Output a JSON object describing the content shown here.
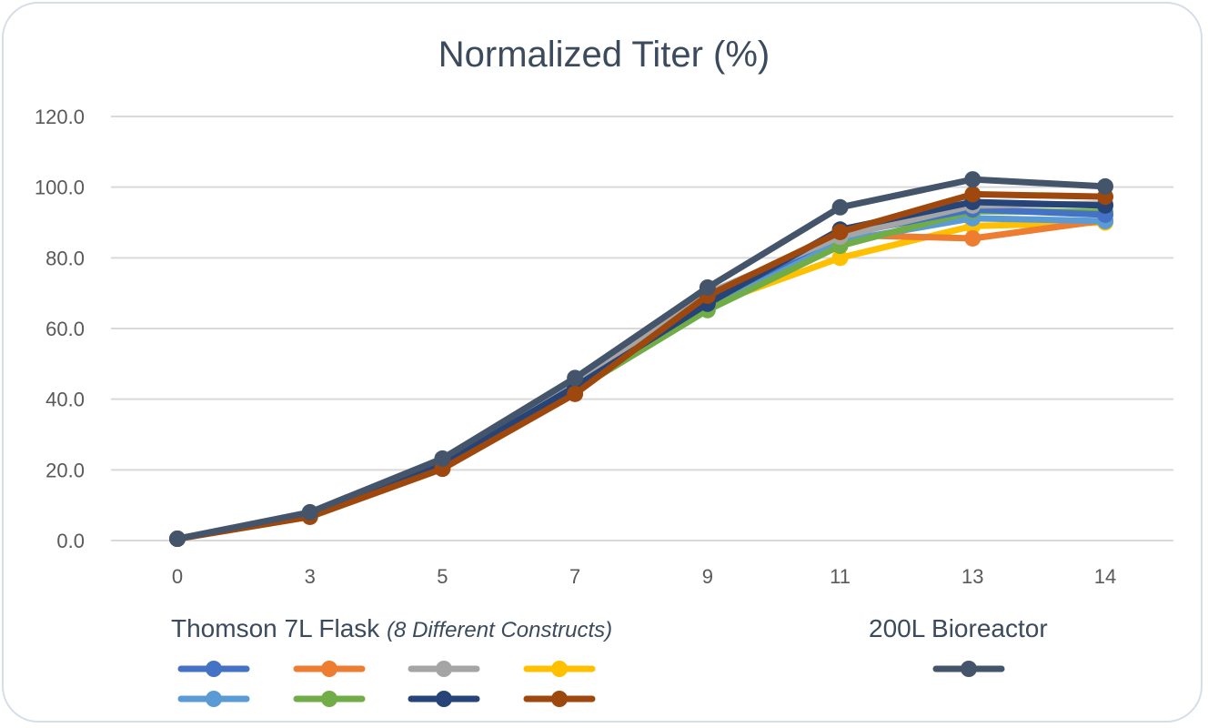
{
  "chart_data": {
    "type": "line",
    "title": "Normalized Titer (%)",
    "xlabel": "",
    "ylabel": "",
    "categories": [
      "0",
      "3",
      "5",
      "7",
      "9",
      "11",
      "13",
      "14"
    ],
    "ylim": [
      0,
      120
    ],
    "yticks": [
      "0.0",
      "20.0",
      "40.0",
      "60.0",
      "80.0",
      "100.0",
      "120.0"
    ],
    "grid": true,
    "legend": {
      "group1_title": "Thomson 7L Flask",
      "group1_note": "(8 Different Constructs)",
      "group2_title": "200L Bioreactor",
      "placement": "bottom"
    },
    "series": [
      {
        "group": "flask",
        "color": "#4472c4",
        "values": [
          0.5,
          7.2,
          21.5,
          43.5,
          67.5,
          86.5,
          93.7,
          92.2
        ]
      },
      {
        "group": "flask",
        "color": "#ed7d31",
        "values": [
          0.5,
          7.2,
          21.5,
          43.0,
          67.8,
          86.5,
          85.5,
          90.6
        ]
      },
      {
        "group": "flask",
        "color": "#a5a5a5",
        "values": [
          0.5,
          7.3,
          21.8,
          44.0,
          70.0,
          86.0,
          94.8,
          95.3
        ]
      },
      {
        "group": "flask",
        "color": "#ffc000",
        "values": [
          0.5,
          7.0,
          21.0,
          42.5,
          66.5,
          80.0,
          89.0,
          90.0
        ]
      },
      {
        "group": "flask",
        "color": "#5b9bd5",
        "values": [
          0.5,
          7.1,
          21.3,
          43.0,
          66.8,
          84.7,
          91.2,
          90.4
        ]
      },
      {
        "group": "flask",
        "color": "#70ad47",
        "values": [
          0.5,
          7.0,
          21.0,
          42.5,
          65.2,
          83.4,
          93.2,
          93.0
        ]
      },
      {
        "group": "flask",
        "color": "#264478",
        "values": [
          0.5,
          7.2,
          21.6,
          43.5,
          67.0,
          88.0,
          95.8,
          94.8
        ]
      },
      {
        "group": "flask",
        "color": "#9e480e",
        "values": [
          0.5,
          6.7,
          20.3,
          41.5,
          69.3,
          87.3,
          98.0,
          97.3
        ]
      },
      {
        "group": "bioreactor",
        "color": "#44546a",
        "values": [
          0.5,
          8.0,
          23.2,
          46.0,
          71.6,
          94.3,
          102.2,
          100.2
        ]
      }
    ]
  }
}
